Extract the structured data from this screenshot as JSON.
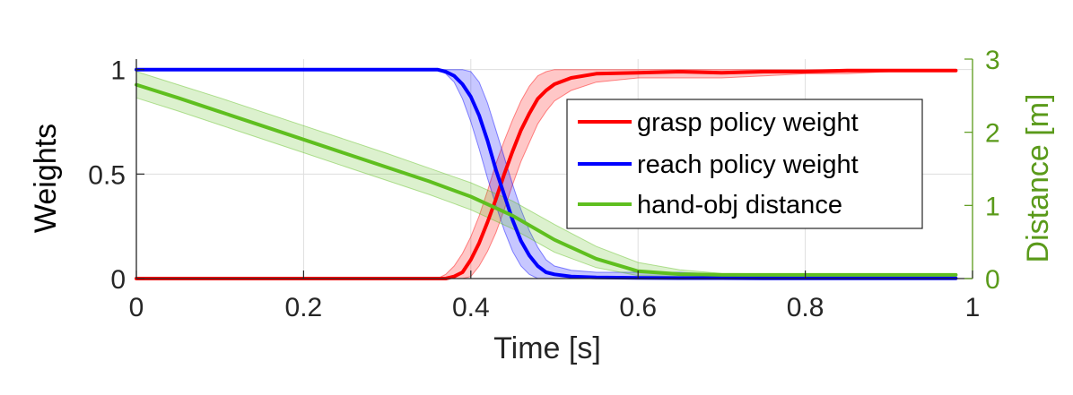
{
  "chart_data": {
    "type": "line",
    "title": "",
    "xlabel": "Time [s]",
    "ylabel_left": "Weights",
    "ylabel_right": "Distance [m]",
    "xlim": [
      0,
      1
    ],
    "ylim_left": [
      0,
      1.05
    ],
    "ylim_right": [
      0,
      3
    ],
    "x_ticks": [
      "0",
      "0.2",
      "0.4",
      "0.6",
      "0.8",
      "1"
    ],
    "y_left_ticks": [
      "0",
      "0.5",
      "1"
    ],
    "y_right_ticks": [
      "0",
      "1",
      "2",
      "3"
    ],
    "grid": true,
    "legend_position": "right-center",
    "colors": {
      "grasp": "#ff0000",
      "reach": "#0000ff",
      "distance": "#5fbf1f",
      "right_axis": "#5a9a1a",
      "grid": "#dedede"
    },
    "series": [
      {
        "name": "grasp policy weight",
        "axis": "left",
        "x": [
          0,
          0.36,
          0.37,
          0.38,
          0.39,
          0.4,
          0.41,
          0.42,
          0.43,
          0.44,
          0.45,
          0.46,
          0.47,
          0.48,
          0.49,
          0.5,
          0.52,
          0.55,
          0.6,
          0.65,
          0.7,
          0.75,
          0.8,
          0.85,
          0.9,
          0.98
        ],
        "y": [
          0,
          0,
          0,
          0.01,
          0.03,
          0.09,
          0.17,
          0.27,
          0.38,
          0.5,
          0.61,
          0.71,
          0.79,
          0.86,
          0.9,
          0.93,
          0.96,
          0.98,
          0.985,
          0.99,
          0.985,
          0.99,
          0.99,
          0.995,
          0.995,
          0.995
        ],
        "upper": [
          0,
          0,
          0.02,
          0.06,
          0.12,
          0.2,
          0.3,
          0.42,
          0.55,
          0.66,
          0.76,
          0.85,
          0.92,
          0.97,
          0.99,
          1.0,
          1.0,
          1.0,
          1.0,
          1.0,
          1.0,
          1.0,
          1.0,
          1.0,
          1.0,
          1.0
        ],
        "lower": [
          0,
          0,
          0,
          0,
          0,
          0.01,
          0.06,
          0.13,
          0.22,
          0.33,
          0.45,
          0.56,
          0.65,
          0.74,
          0.8,
          0.85,
          0.9,
          0.94,
          0.96,
          0.96,
          0.96,
          0.97,
          0.98,
          0.98,
          0.99,
          0.99
        ]
      },
      {
        "name": "reach policy weight",
        "axis": "left",
        "x": [
          0,
          0.36,
          0.37,
          0.38,
          0.39,
          0.4,
          0.41,
          0.42,
          0.43,
          0.44,
          0.45,
          0.46,
          0.47,
          0.48,
          0.49,
          0.5,
          0.52,
          0.55,
          0.6,
          0.65,
          0.7,
          0.75,
          0.8,
          0.9,
          0.98
        ],
        "y": [
          1,
          1,
          0.99,
          0.97,
          0.93,
          0.87,
          0.78,
          0.66,
          0.52,
          0.4,
          0.28,
          0.18,
          0.11,
          0.06,
          0.03,
          0.02,
          0.01,
          0.005,
          0.003,
          0.002,
          0.002,
          0.001,
          0.001,
          0.001,
          0.001
        ],
        "upper": [
          1,
          1,
          1,
          1,
          1,
          0.99,
          0.94,
          0.84,
          0.71,
          0.58,
          0.45,
          0.33,
          0.23,
          0.15,
          0.09,
          0.06,
          0.04,
          0.03,
          0.03,
          0.03,
          0.02,
          0.01,
          0.005,
          0.003,
          0.002
        ],
        "lower": [
          1,
          1,
          0.98,
          0.94,
          0.86,
          0.75,
          0.62,
          0.48,
          0.35,
          0.23,
          0.13,
          0.06,
          0.02,
          0,
          0,
          0,
          0,
          0,
          0,
          0,
          0,
          0,
          0,
          0,
          0
        ]
      },
      {
        "name": "hand-obj distance",
        "axis": "right",
        "x": [
          0,
          0.05,
          0.1,
          0.15,
          0.2,
          0.25,
          0.3,
          0.35,
          0.4,
          0.45,
          0.5,
          0.55,
          0.6,
          0.65,
          0.7,
          0.8,
          0.9,
          0.98
        ],
        "y": [
          2.65,
          2.47,
          2.28,
          2.09,
          1.9,
          1.71,
          1.52,
          1.33,
          1.12,
          0.86,
          0.53,
          0.27,
          0.1,
          0.06,
          0.05,
          0.05,
          0.05,
          0.05
        ],
        "upper": [
          2.83,
          2.65,
          2.47,
          2.28,
          2.09,
          1.9,
          1.71,
          1.51,
          1.31,
          1.06,
          0.74,
          0.44,
          0.22,
          0.12,
          0.07,
          0.06,
          0.06,
          0.06
        ],
        "lower": [
          2.47,
          2.29,
          2.1,
          1.91,
          1.72,
          1.53,
          1.34,
          1.15,
          0.94,
          0.68,
          0.36,
          0.15,
          0.04,
          0.03,
          0.03,
          0.03,
          0.03,
          0.03
        ]
      }
    ]
  }
}
